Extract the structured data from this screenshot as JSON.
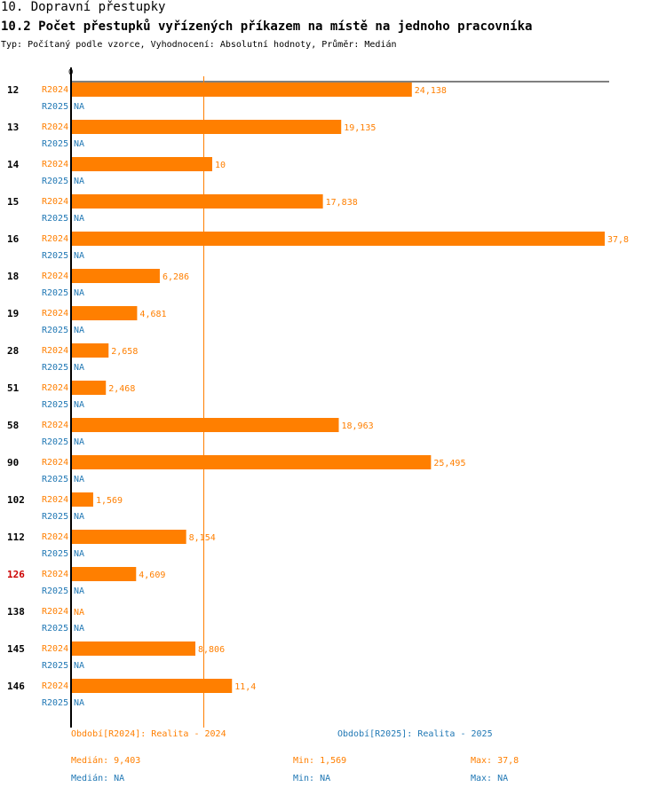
{
  "header": {
    "title": "10. Dopravní přestupky",
    "subtitle": "10.2 Počet přestupků vyřízených příkazem na místě na jednoho pracovníka",
    "type_line": "Typ: Počítaný podle vzorce, Vyhodnocení: Absolutní hodnoty, Průměr: Medián"
  },
  "colors": {
    "r2024": "#ff7f00",
    "r2025": "#1f77b4",
    "highlight": "#cc0000",
    "axis": "#000000"
  },
  "chart_data": {
    "type": "bar",
    "orientation": "horizontal",
    "axis_zero_label": "0",
    "xlim": [
      0,
      37.8
    ],
    "reference_line": {
      "label": "Medián",
      "value": 9.403
    },
    "series_names": [
      "R2024",
      "R2025"
    ],
    "categories": [
      {
        "label": "12",
        "highlight": false,
        "r2024": 24.138,
        "r2024_text": "24,138",
        "r2025_text": "NA"
      },
      {
        "label": "13",
        "highlight": false,
        "r2024": 19.135,
        "r2024_text": "19,135",
        "r2025_text": "NA"
      },
      {
        "label": "14",
        "highlight": false,
        "r2024": 10,
        "r2024_text": "10",
        "r2025_text": "NA"
      },
      {
        "label": "15",
        "highlight": false,
        "r2024": 17.838,
        "r2024_text": "17,838",
        "r2025_text": "NA"
      },
      {
        "label": "16",
        "highlight": false,
        "r2024": 37.8,
        "r2024_text": "37,8",
        "r2025_text": "NA"
      },
      {
        "label": "18",
        "highlight": false,
        "r2024": 6.286,
        "r2024_text": "6,286",
        "r2025_text": "NA"
      },
      {
        "label": "19",
        "highlight": false,
        "r2024": 4.681,
        "r2024_text": "4,681",
        "r2025_text": "NA"
      },
      {
        "label": "28",
        "highlight": false,
        "r2024": 2.658,
        "r2024_text": "2,658",
        "r2025_text": "NA"
      },
      {
        "label": "51",
        "highlight": false,
        "r2024": 2.468,
        "r2024_text": "2,468",
        "r2025_text": "NA"
      },
      {
        "label": "58",
        "highlight": false,
        "r2024": 18.963,
        "r2024_text": "18,963",
        "r2025_text": "NA"
      },
      {
        "label": "90",
        "highlight": false,
        "r2024": 25.495,
        "r2024_text": "25,495",
        "r2025_text": "NA"
      },
      {
        "label": "102",
        "highlight": false,
        "r2024": 1.569,
        "r2024_text": "1,569",
        "r2025_text": "NA"
      },
      {
        "label": "112",
        "highlight": false,
        "r2024": 8.154,
        "r2024_text": "8,154",
        "r2025_text": "NA"
      },
      {
        "label": "126",
        "highlight": true,
        "r2024": 4.609,
        "r2024_text": "4,609",
        "r2025_text": "NA"
      },
      {
        "label": "138",
        "highlight": false,
        "r2024": null,
        "r2024_text": "NA",
        "r2025_text": "NA"
      },
      {
        "label": "145",
        "highlight": false,
        "r2024": 8.806,
        "r2024_text": "8,806",
        "r2025_text": "NA"
      },
      {
        "label": "146",
        "highlight": false,
        "r2024": 11.4,
        "r2024_text": "11,4",
        "r2025_text": "NA"
      }
    ]
  },
  "legend": {
    "period_2024": "Období[R2024]: Realita - 2024",
    "period_2025": "Období[R2025]: Realita - 2025",
    "median_2024": "Medián: 9,403",
    "min_2024": "Min: 1,569",
    "max_2024": "Max: 37,8",
    "median_2025": "Medián: NA",
    "min_2025": "Min: NA",
    "max_2025": "Max: NA"
  }
}
